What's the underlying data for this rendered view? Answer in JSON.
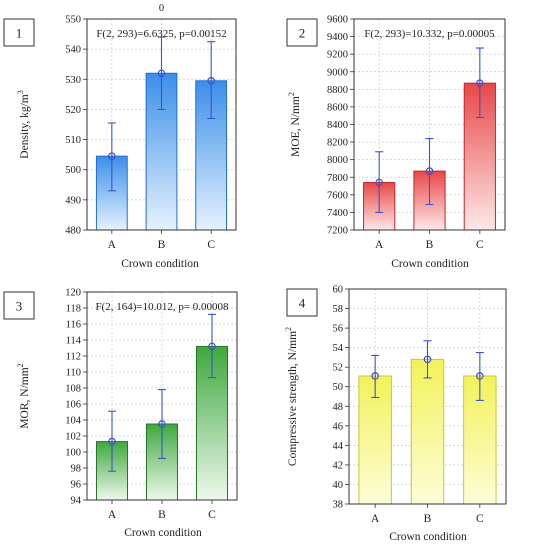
{
  "chart_data": [
    {
      "type": "bar",
      "panel_number": "1",
      "caption": "0",
      "annotation": "F(2, 293)=6.6325, p=0.00152",
      "xlabel": "Crown condition",
      "ylabel": "Density, kg/m",
      "ylabel_sup": "3",
      "categories": [
        "A",
        "B",
        "C"
      ],
      "values": [
        504.5,
        532,
        529.5
      ],
      "err_low": [
        493,
        520,
        517
      ],
      "err_high": [
        515.5,
        544,
        542.5
      ],
      "ylim": [
        480,
        550
      ],
      "yticks": [
        480,
        490,
        500,
        510,
        520,
        530,
        540,
        550
      ],
      "grid": true,
      "colors": {
        "fill_light": "#e6f2ff",
        "fill_dark": "#3b8fe8",
        "edge": "#1f6fd0"
      }
    },
    {
      "type": "bar",
      "panel_number": "2",
      "annotation": "F(2, 293)=10.332, p=0.00005",
      "xlabel": "Crown condition",
      "ylabel": "MOE, N/mm",
      "ylabel_sup": "2",
      "categories": [
        "A",
        "B",
        "C"
      ],
      "values": [
        7740,
        7870,
        8870
      ],
      "err_low": [
        7400,
        7490,
        8480
      ],
      "err_high": [
        8090,
        8240,
        9270
      ],
      "ylim": [
        7200,
        9600
      ],
      "yticks": [
        7200,
        7400,
        7600,
        7800,
        8000,
        8200,
        8400,
        8600,
        8800,
        9000,
        9200,
        9400,
        9600
      ],
      "grid": true,
      "colors": {
        "fill_light": "#fde8e8",
        "fill_dark": "#e84848",
        "edge": "#c02828"
      }
    },
    {
      "type": "bar",
      "panel_number": "3",
      "annotation": "F(2, 164)=10.012, p= 0.00008",
      "xlabel": "Crown condition",
      "ylabel": "MOR, N/mm",
      "ylabel_sup": "2",
      "categories": [
        "A",
        "B",
        "C"
      ],
      "values": [
        101.3,
        103.5,
        113.2
      ],
      "err_low": [
        97.6,
        99.2,
        109.3
      ],
      "err_high": [
        105.1,
        107.8,
        117.2
      ],
      "ylim": [
        94,
        120
      ],
      "yticks": [
        94,
        96,
        98,
        100,
        102,
        104,
        106,
        108,
        110,
        112,
        114,
        116,
        118,
        120
      ],
      "grid": true,
      "colors": {
        "fill_light": "#eef8ec",
        "fill_dark": "#3ea83e",
        "edge": "#247824"
      }
    },
    {
      "type": "bar",
      "panel_number": "4",
      "annotation": "",
      "xlabel": "Crown condition",
      "ylabel": "Compressive strength, N/mm",
      "ylabel_sup": "2",
      "categories": [
        "A",
        "B",
        "C"
      ],
      "values": [
        51.1,
        52.8,
        51.1
      ],
      "err_low": [
        48.9,
        50.9,
        48.6
      ],
      "err_high": [
        53.2,
        54.7,
        53.5
      ],
      "ylim": [
        38,
        60
      ],
      "yticks": [
        38,
        40,
        42,
        44,
        46,
        48,
        50,
        52,
        54,
        56,
        58,
        60
      ],
      "grid": true,
      "colors": {
        "fill_light": "#fdfdd8",
        "fill_dark": "#f2f25a",
        "edge": "#c8c830"
      }
    }
  ]
}
